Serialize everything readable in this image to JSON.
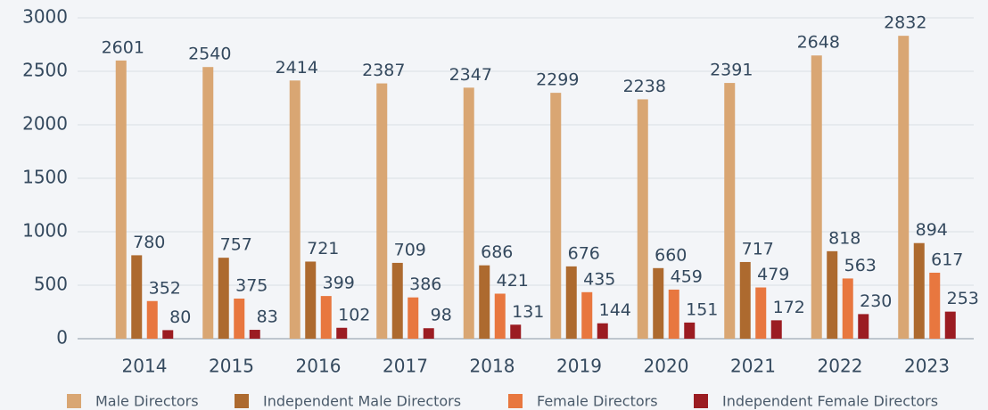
{
  "chart_data": {
    "type": "bar",
    "categories": [
      "2014",
      "2015",
      "2016",
      "2017",
      "2018",
      "2019",
      "2020",
      "2021",
      "2022",
      "2023"
    ],
    "series": [
      {
        "name": "Male Directors",
        "color": "#d9a673",
        "values": [
          2601,
          2540,
          2414,
          2387,
          2347,
          2299,
          2238,
          2391,
          2648,
          2832
        ]
      },
      {
        "name": "Independent Male Directors",
        "color": "#ad6a2f",
        "values": [
          780,
          757,
          721,
          709,
          686,
          676,
          660,
          717,
          818,
          894
        ]
      },
      {
        "name": "Female Directors",
        "color": "#e8773f",
        "values": [
          352,
          375,
          399,
          386,
          421,
          435,
          459,
          479,
          563,
          617
        ]
      },
      {
        "name": "Independent Female Directors",
        "color": "#9b1c22",
        "values": [
          80,
          83,
          102,
          98,
          131,
          144,
          151,
          172,
          230,
          253
        ]
      }
    ],
    "ylim": [
      0,
      3000
    ],
    "yticks": [
      0,
      500,
      1000,
      1500,
      2000,
      2500,
      3000
    ],
    "grid": true,
    "legend": "bottom"
  }
}
